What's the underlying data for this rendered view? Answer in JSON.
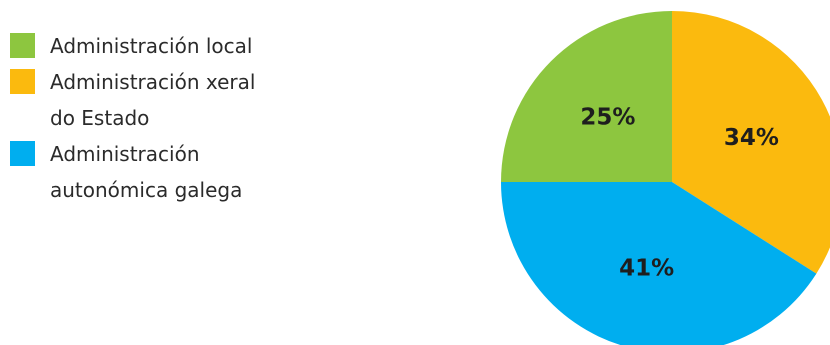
{
  "chart_data": {
    "type": "pie",
    "slices": [
      {
        "label": "Administración xeral\ndo Estado",
        "value": 34,
        "display": "34%",
        "color": "#FBBA0E"
      },
      {
        "label": "Administración\nautonómica galega",
        "value": 41,
        "display": "41%",
        "color": "#00AEEF"
      },
      {
        "label": "Administración local",
        "value": 25,
        "display": "25%",
        "color": "#8DC63F"
      }
    ],
    "legend_order": [
      2,
      0,
      1
    ],
    "legend_position": "left"
  }
}
